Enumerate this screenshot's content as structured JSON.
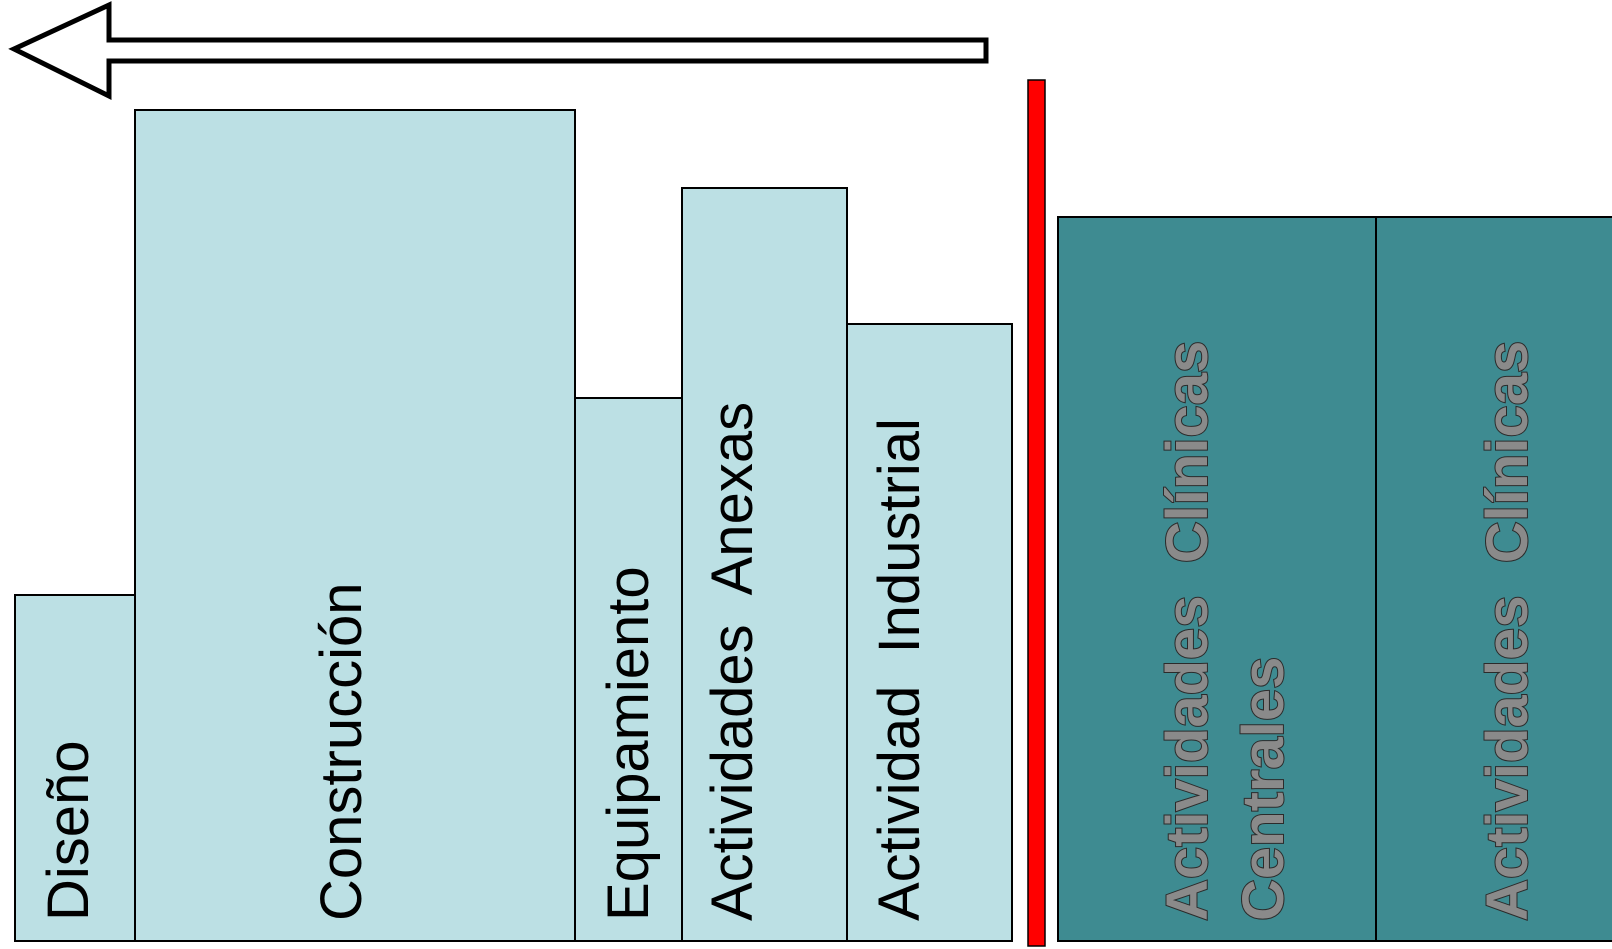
{
  "colors": {
    "pre_block_fill": "#bce0e4",
    "clinical_block_fill": "#3e8b91",
    "divider": "#ff0000",
    "outline": "#000000",
    "arrow_fill": "#ffffff"
  },
  "arrow": {
    "direction": "left",
    "icon": "left-arrow-icon"
  },
  "blocks": {
    "diseno": "Diseño",
    "construccion": "Construcción",
    "equipamiento": "Equipamiento",
    "actividades_anexas": "Actividades  Anexas",
    "actividad_industrial": "Actividad  Industrial",
    "clinicas_centrales_line1": "Actividades  Clínicas",
    "clinicas_centrales_line2": "Centrales",
    "clinicas": "Actividades  Clínicas"
  }
}
